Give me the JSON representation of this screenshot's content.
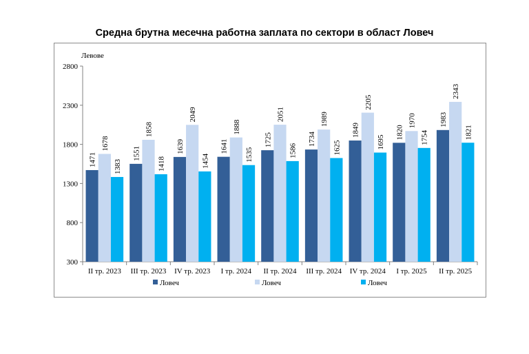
{
  "chart_data": {
    "type": "bar",
    "title": "Средна брутна месечна работна заплата по сектори в област Ловеч",
    "ylabel": "Левове",
    "xlabel": "",
    "ylim": [
      300,
      2800
    ],
    "yticks": [
      300,
      800,
      1300,
      1800,
      2300,
      2800
    ],
    "grid": false,
    "legend": "bottom",
    "categories": [
      "II тр. 2023",
      "III тр. 2023",
      "IV тр. 2023",
      "I тр. 2024",
      "II тр. 2024",
      "III тр. 2024",
      "IV тр. 2024",
      "I тр. 2025",
      "II тр. 2025"
    ],
    "series": [
      {
        "name": "Ловеч",
        "color": "#335f97",
        "values": [
          1471,
          1551,
          1639,
          1641,
          1725,
          1734,
          1849,
          1820,
          1983
        ]
      },
      {
        "name": "Ловеч",
        "color": "#c6d8f1",
        "values": [
          1678,
          1858,
          2049,
          1888,
          2051,
          1989,
          2205,
          1970,
          2343
        ]
      },
      {
        "name": "Ловеч",
        "color": "#00b0f0",
        "values": [
          1383,
          1418,
          1454,
          1535,
          1586,
          1625,
          1695,
          1754,
          1821
        ]
      }
    ]
  }
}
